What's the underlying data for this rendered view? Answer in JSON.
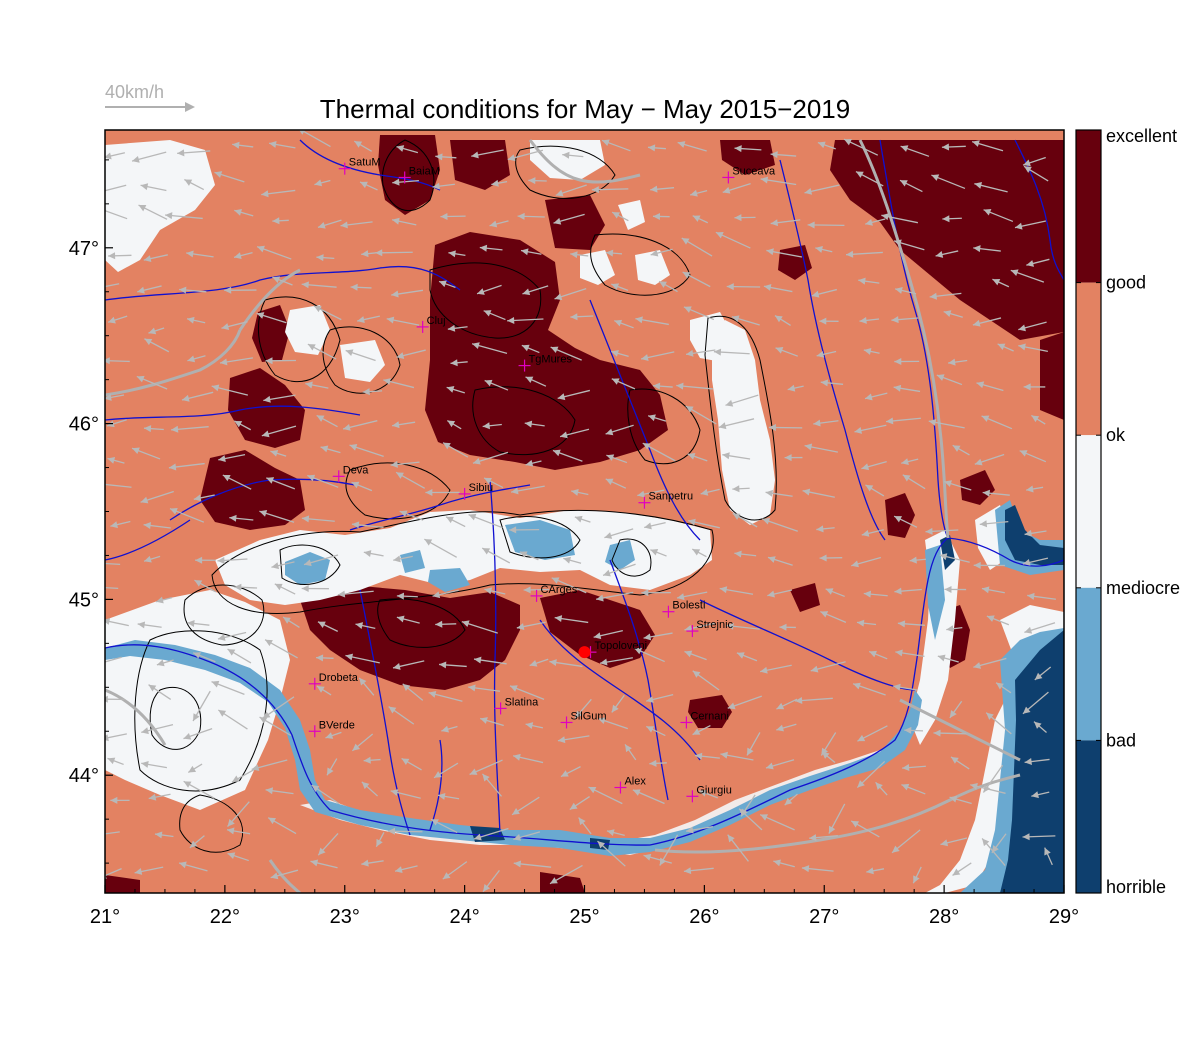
{
  "title": "Thermal conditions for May − May  2015−2019",
  "wind_scale": {
    "label": "40km/h",
    "speed_kmh": 40
  },
  "map": {
    "lon_range": [
      21,
      29
    ],
    "lat_range": [
      43.33,
      47.67
    ],
    "lon_ticks": [
      {
        "value": 21,
        "label": "21°"
      },
      {
        "value": 22,
        "label": "22°"
      },
      {
        "value": 23,
        "label": "23°"
      },
      {
        "value": 24,
        "label": "24°"
      },
      {
        "value": 25,
        "label": "25°"
      },
      {
        "value": 26,
        "label": "26°"
      },
      {
        "value": 27,
        "label": "27°"
      },
      {
        "value": 28,
        "label": "28°"
      },
      {
        "value": 29,
        "label": "29°"
      }
    ],
    "lat_ticks": [
      {
        "value": 44,
        "label": "44°"
      },
      {
        "value": 45,
        "label": "45°"
      },
      {
        "value": 46,
        "label": "46°"
      },
      {
        "value": 47,
        "label": "47°"
      }
    ],
    "cities": [
      {
        "name": "SatuM",
        "lon": 23.0,
        "lat": 47.45
      },
      {
        "name": "BaiaM",
        "lon": 23.5,
        "lat": 47.4
      },
      {
        "name": "Suceava",
        "lon": 26.2,
        "lat": 47.4
      },
      {
        "name": "Cluj",
        "lon": 23.65,
        "lat": 46.55
      },
      {
        "name": "TgMures",
        "lon": 24.5,
        "lat": 46.33
      },
      {
        "name": "Deva",
        "lon": 22.95,
        "lat": 45.7
      },
      {
        "name": "Sibiu",
        "lon": 24.0,
        "lat": 45.6
      },
      {
        "name": "Sanpetru",
        "lon": 25.5,
        "lat": 45.55
      },
      {
        "name": "CArges",
        "lon": 24.6,
        "lat": 45.02
      },
      {
        "name": "Bolesti",
        "lon": 25.7,
        "lat": 44.93
      },
      {
        "name": "Strejnic",
        "lon": 25.9,
        "lat": 44.82
      },
      {
        "name": "Topoloveni",
        "lon": 25.05,
        "lat": 44.7
      },
      {
        "name": "Drobeta",
        "lon": 22.75,
        "lat": 44.52
      },
      {
        "name": "Slatina",
        "lon": 24.3,
        "lat": 44.38
      },
      {
        "name": "SilGum",
        "lon": 24.85,
        "lat": 44.3
      },
      {
        "name": "Cernani",
        "lon": 25.85,
        "lat": 44.3
      },
      {
        "name": "BVerde",
        "lon": 22.75,
        "lat": 44.25
      },
      {
        "name": "Alex",
        "lon": 25.3,
        "lat": 43.93
      },
      {
        "name": "Giurgiu",
        "lon": 25.9,
        "lat": 43.88
      }
    ],
    "marker": {
      "name": "Topoloveni",
      "lon": 25.0,
      "lat": 44.7,
      "color": "#ff0000"
    }
  },
  "legend": {
    "classes": [
      {
        "label": "excellent",
        "color": "#67000d"
      },
      {
        "label": "good",
        "color": "#e38262"
      },
      {
        "label": "ok",
        "color": "#f4f6f8"
      },
      {
        "label": "mediocre",
        "color": "#6aa9d0"
      },
      {
        "label": "bad",
        "color": "#0e3f6e"
      },
      {
        "label": "horrible",
        "color": ""
      }
    ]
  },
  "colors": {
    "excellent": "#67000d",
    "good": "#e38262",
    "ok": "#f4f6f8",
    "mediocre": "#6aa9d0",
    "bad": "#0e3f6e",
    "river": "#1010d0",
    "border": "#b0b0b0",
    "wind": "#b8b8b8",
    "city": "#e000c0"
  }
}
